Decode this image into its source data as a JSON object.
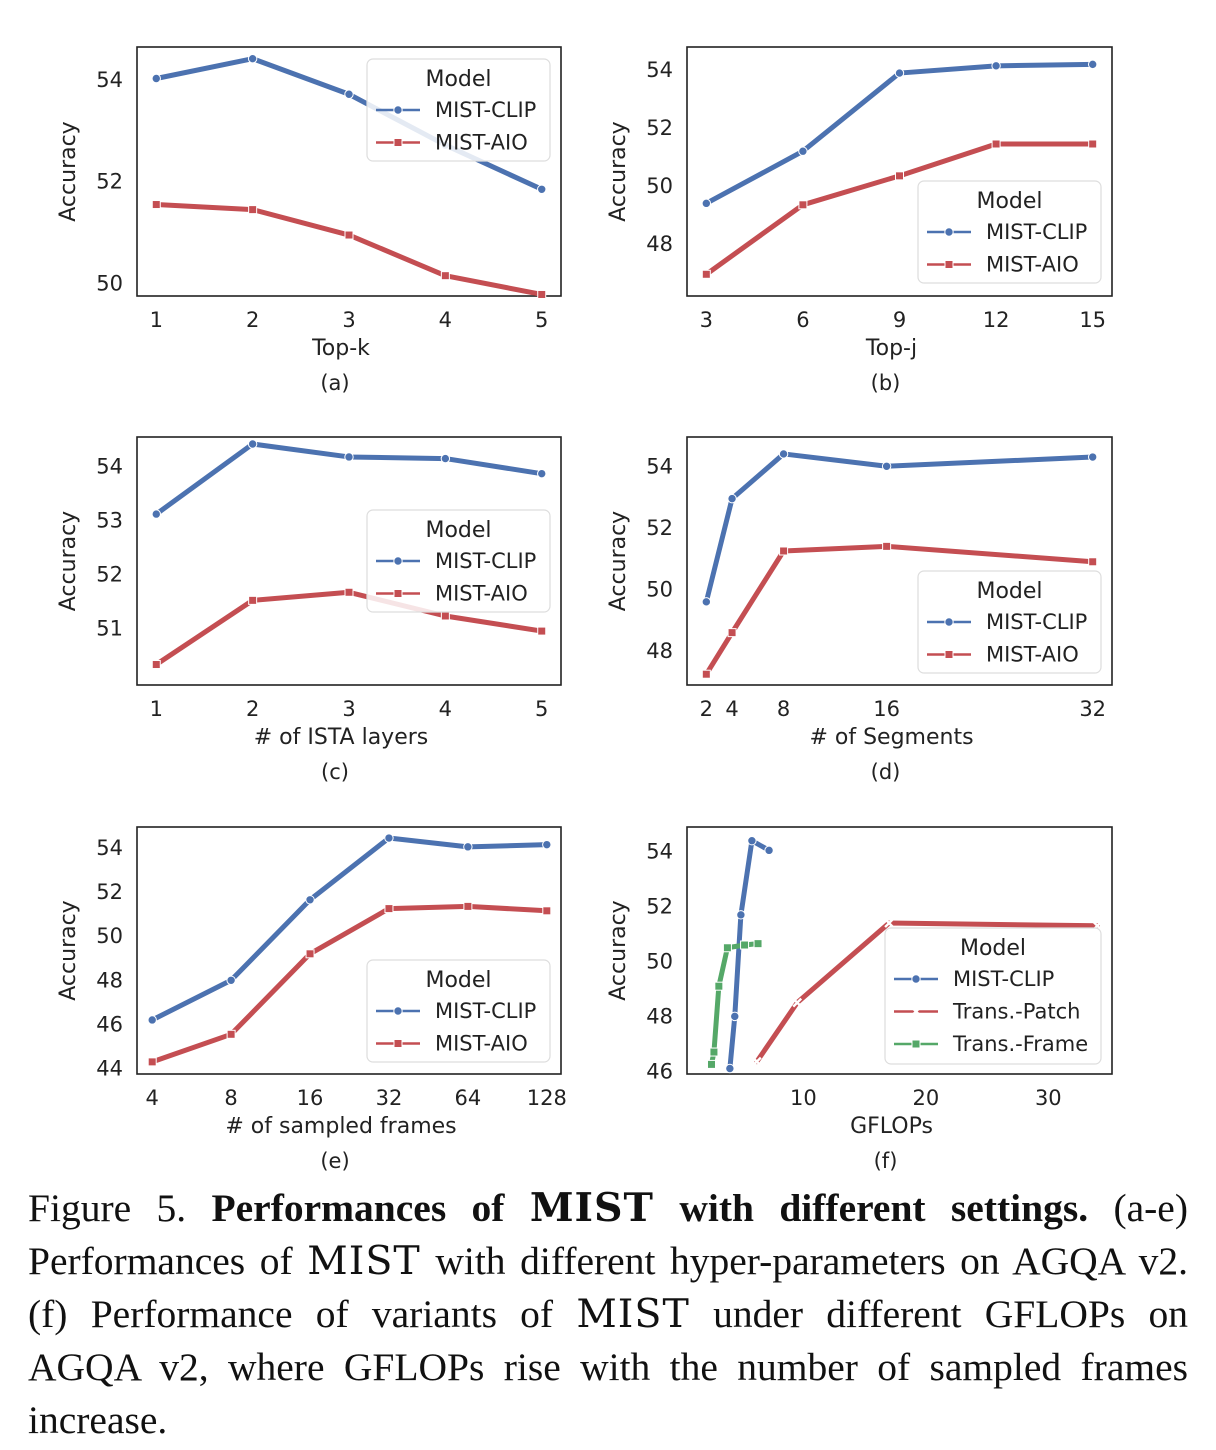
{
  "colors": {
    "MIST-CLIP": "#4c72b0",
    "MIST-AIO": "#c44e52",
    "Trans.-Patch": "#c44e52",
    "Trans.-Frame": "#55a868",
    "axes": "#222222"
  },
  "chart_data": [
    {
      "id": "a",
      "type": "line",
      "xlabel": "Top-k",
      "ylabel": "Accuracy",
      "panel_label": "(a)",
      "xlim": [
        0.8,
        5.2
      ],
      "ylim": [
        49.75,
        54.65
      ],
      "xticks": [
        1,
        2,
        3,
        4,
        5
      ],
      "yticks": [
        50,
        52,
        54
      ],
      "legend_title": "Model",
      "legend_position": "upper right",
      "series": [
        {
          "name": "MIST-CLIP",
          "marker": "circle",
          "x": [
            1,
            2,
            3,
            4,
            5
          ],
          "y": [
            54.03,
            54.42,
            53.72,
            52.72,
            51.85
          ]
        },
        {
          "name": "MIST-AIO",
          "marker": "square",
          "x": [
            1,
            2,
            3,
            4,
            5
          ],
          "y": [
            51.55,
            51.45,
            50.95,
            50.15,
            49.78
          ]
        }
      ]
    },
    {
      "id": "b",
      "type": "line",
      "xlabel": "Top-j",
      "ylabel": "Accuracy",
      "panel_label": "(b)",
      "xlim": [
        2.4,
        15.6
      ],
      "ylim": [
        46.2,
        54.8
      ],
      "xticks": [
        3,
        6,
        9,
        12,
        15
      ],
      "yticks": [
        48,
        50,
        52,
        54
      ],
      "legend_title": "Model",
      "legend_position": "lower right",
      "series": [
        {
          "name": "MIST-CLIP",
          "marker": "circle",
          "x": [
            3,
            6,
            9,
            12,
            15
          ],
          "y": [
            49.4,
            51.2,
            53.9,
            54.15,
            54.2
          ]
        },
        {
          "name": "MIST-AIO",
          "marker": "square",
          "x": [
            3,
            6,
            9,
            12,
            15
          ],
          "y": [
            46.95,
            49.35,
            50.35,
            51.45,
            51.45
          ]
        }
      ]
    },
    {
      "id": "c",
      "type": "line",
      "xlabel": "# of ISTA layers",
      "ylabel": "Accuracy",
      "panel_label": "(c)",
      "xlim": [
        0.8,
        5.2
      ],
      "ylim": [
        49.95,
        54.55
      ],
      "xticks": [
        1,
        2,
        3,
        4,
        5
      ],
      "yticks": [
        51,
        52,
        53,
        54
      ],
      "legend_title": "Model",
      "legend_position": "center right",
      "series": [
        {
          "name": "MIST-CLIP",
          "marker": "circle",
          "x": [
            1,
            2,
            3,
            4,
            5
          ],
          "y": [
            53.12,
            54.42,
            54.18,
            54.15,
            53.87
          ]
        },
        {
          "name": "MIST-AIO",
          "marker": "square",
          "x": [
            1,
            2,
            3,
            4,
            5
          ],
          "y": [
            50.33,
            51.52,
            51.67,
            51.23,
            50.95
          ]
        }
      ]
    },
    {
      "id": "d",
      "type": "line",
      "xlabel": "# of Segments",
      "ylabel": "Accuracy",
      "panel_label": "(d)",
      "xlim": [
        0.5,
        33.5
      ],
      "ylim": [
        46.9,
        54.95
      ],
      "xticks": [
        2,
        4,
        8,
        16,
        32
      ],
      "yticks": [
        48,
        50,
        52,
        54
      ],
      "legend_title": "Model",
      "legend_position": "lower right",
      "series": [
        {
          "name": "MIST-CLIP",
          "marker": "circle",
          "x": [
            2,
            4,
            8,
            16,
            32
          ],
          "y": [
            49.6,
            52.95,
            54.4,
            54.0,
            54.3
          ]
        },
        {
          "name": "MIST-AIO",
          "marker": "square",
          "x": [
            2,
            4,
            8,
            16,
            32
          ],
          "y": [
            47.25,
            48.6,
            51.25,
            51.4,
            50.9
          ]
        }
      ]
    },
    {
      "id": "e",
      "type": "line",
      "xlabel": "# of sampled frames",
      "ylabel": "Accuracy",
      "panel_label": "(e)",
      "xscale": "log2",
      "xlim": [
        3.5,
        145
      ],
      "ylim": [
        43.75,
        54.95
      ],
      "xticks": [
        4,
        8,
        16,
        32,
        64,
        128
      ],
      "yticks": [
        44,
        46,
        48,
        50,
        52,
        54
      ],
      "legend_title": "Model",
      "legend_position": "lower right",
      "series": [
        {
          "name": "MIST-CLIP",
          "marker": "circle",
          "x": [
            4,
            8,
            16,
            32,
            64,
            128
          ],
          "y": [
            46.2,
            48.0,
            51.65,
            54.45,
            54.05,
            54.15
          ]
        },
        {
          "name": "MIST-AIO",
          "marker": "square",
          "x": [
            4,
            8,
            16,
            32,
            64,
            128
          ],
          "y": [
            44.3,
            45.55,
            49.2,
            51.25,
            51.35,
            51.15
          ]
        }
      ]
    },
    {
      "id": "f",
      "type": "line",
      "xlabel": "GFLOPs",
      "ylabel": "Accuracy",
      "panel_label": "(f)",
      "xlim": [
        0.5,
        35.2
      ],
      "ylim": [
        45.9,
        54.9
      ],
      "xticks": [
        10,
        20,
        30
      ],
      "yticks": [
        46,
        48,
        50,
        52,
        54
      ],
      "legend_title": "Model",
      "legend_position": "center right",
      "series": [
        {
          "name": "MIST-CLIP",
          "marker": "circle",
          "x": [
            4.0,
            4.4,
            4.9,
            5.8,
            7.2
          ],
          "y": [
            46.1,
            48.0,
            51.7,
            54.4,
            54.05
          ]
        },
        {
          "name": "Trans.-Patch",
          "marker": "x",
          "x": [
            6.2,
            9.5,
            17.0,
            34.0
          ],
          "y": [
            46.35,
            48.5,
            51.4,
            51.3
          ]
        },
        {
          "name": "Trans.-Frame",
          "marker": "square",
          "x": [
            2.5,
            2.7,
            3.1,
            3.8,
            5.2,
            6.3
          ],
          "y": [
            46.25,
            46.7,
            49.1,
            50.5,
            50.6,
            50.65
          ]
        }
      ]
    }
  ],
  "caption": {
    "prefix": "Figure 5. ",
    "bold_part1": "Performances of ",
    "mist": "MIST",
    "bold_part2": " with different settings.",
    "line_rest1": " (a-e) Performances of ",
    "line_rest2": " with different hyper-parameters on AGQA v2. (f) Performance of variants of ",
    "line_rest3": " under different GFLOPs on AGQA v2, where GFLOPs rise with the number of sampled frames increase."
  }
}
